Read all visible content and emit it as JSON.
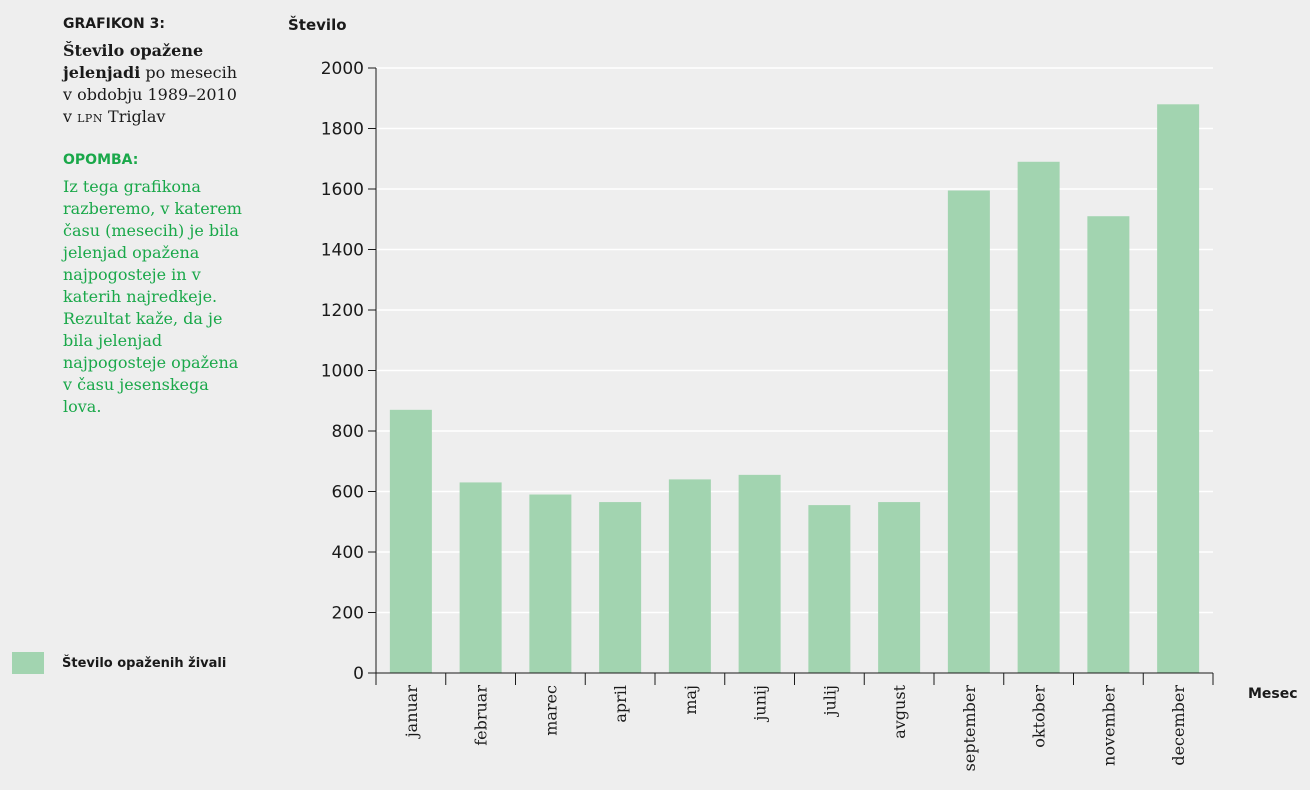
{
  "sidebar": {
    "label": "GRAFIKON 3:",
    "title_bold": "Število opažene jelenjadi",
    "title_rest": " po mesecih v obdobju 1989–2010 v ",
    "title_sc": "LPN",
    "title_end": " Triglav",
    "note_label": "OPOMBA:",
    "note_text": "Iz tega grafikona razberemo, v katerem času (mesecih) je bila jelenjad opažena najpogosteje in v katerih najredkeje. Rezultat kaže, da je bila jelenjad najpogosteje opažena v času jesenskega lova."
  },
  "legend": {
    "label": "Število opaženih živali"
  },
  "colors": {
    "bar": "#a2d4b0",
    "grid": "#ffffff",
    "axis": "#1a1a1a",
    "accent": "#1aa84a",
    "background": "#eeeeee"
  },
  "chart_data": {
    "type": "bar",
    "title": "",
    "ylabel": "Število",
    "xlabel": "Mesec",
    "ylim": [
      0,
      2000
    ],
    "yticks": [
      0,
      200,
      400,
      600,
      800,
      1000,
      1200,
      1400,
      1600,
      1800,
      2000
    ],
    "categories": [
      "januar",
      "februar",
      "marec",
      "april",
      "maj",
      "junij",
      "julij",
      "avgust",
      "september",
      "oktober",
      "november",
      "december"
    ],
    "series": [
      {
        "name": "Število opaženih živali",
        "values": [
          870,
          630,
          590,
          565,
          640,
          655,
          555,
          565,
          1595,
          1690,
          1510,
          1880
        ]
      }
    ],
    "grid": true,
    "legend_position": "bottom-left"
  }
}
